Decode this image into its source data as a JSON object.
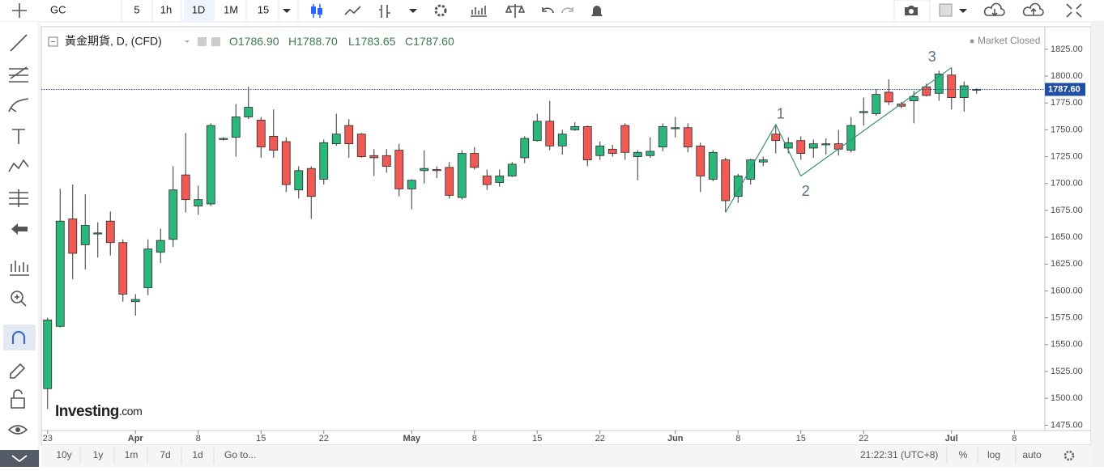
{
  "toolbar": {
    "symbol": "GC",
    "intervals": [
      "5",
      "1h",
      "1D",
      "1M",
      "15"
    ],
    "active": 2
  },
  "legend": {
    "name": "黃金期貨, D, (CFD)",
    "ohlc": [
      {
        "prefix": "O",
        "value": "1786.90"
      },
      {
        "prefix": "H",
        "value": "1788.70"
      },
      {
        "prefix": "L",
        "value": "1783.65"
      },
      {
        "prefix": "C",
        "value": "1787.60"
      }
    ],
    "status": "Market Closed"
  },
  "logo": {
    "brand": "Investing",
    "suffix": ".com"
  },
  "footer": {
    "ranges": [
      "10y",
      "1y",
      "1m",
      "7d",
      "1d"
    ],
    "goto": "Go to...",
    "time": "21:22:31 (UTC+8)",
    "options": [
      "%",
      "log",
      "auto"
    ]
  },
  "chart_data": {
    "type": "candlestick",
    "categories": [
      "23",
      null,
      null,
      null,
      null,
      null,
      null,
      "Apr",
      null,
      null,
      null,
      null,
      "8",
      null,
      null,
      null,
      null,
      "15",
      null,
      null,
      null,
      null,
      "22",
      null,
      null,
      null,
      null,
      null,
      null,
      "May",
      null,
      null,
      null,
      null,
      "8",
      null,
      null,
      null,
      null,
      "15",
      null,
      null,
      null,
      null,
      "22",
      null,
      null,
      null,
      null,
      null,
      "Jun",
      null,
      null,
      null,
      null,
      "8",
      null,
      null,
      null,
      null,
      "15",
      null,
      null,
      null,
      null,
      "22",
      null,
      null,
      null,
      null,
      null,
      null,
      "Jul",
      null,
      null,
      null,
      null,
      "8",
      null,
      null
    ],
    "open": [
      1509,
      1567,
      1667,
      1643,
      1653,
      1665,
      1645,
      1590,
      1603,
      1636,
      1648,
      1708,
      1679,
      1681,
      1741,
      1743,
      1762,
      1759,
      1744,
      1739,
      1694,
      1714,
      1704,
      1737,
      1754,
      1746,
      1726,
      1726,
      1731,
      1695,
      1712,
      1713,
      1715,
      1687,
      1728,
      1707,
      1701,
      1707,
      1724,
      1740,
      1758,
      1735,
      1750,
      1753,
      1726,
      1732,
      1754,
      1725,
      1726,
      1734,
      1751,
      1752,
      1735,
      1704,
      1722,
      1688,
      1704,
      1720,
      1746,
      1733,
      1740,
      1733,
      1736,
      1737,
      1731,
      1766,
      1765,
      1785,
      1774,
      1777,
      1790,
      1784,
      1801,
      1780,
      1786.9,
      null,
      null,
      null,
      null,
      null
    ],
    "high": [
      1575,
      1695,
      1699,
      1690,
      1664,
      1674,
      1648,
      1597,
      1648,
      1658,
      1716,
      1747,
      1698,
      1756,
      1743,
      1774,
      1790,
      1762,
      1769,
      1743,
      1716,
      1716,
      1741,
      1765,
      1760,
      1747,
      1732,
      1732,
      1737,
      1704,
      1731,
      1716,
      1720,
      1731,
      1734,
      1713,
      1713,
      1720,
      1744,
      1765,
      1777,
      1750,
      1757,
      1754,
      1739,
      1736,
      1756,
      1731,
      1743,
      1756,
      1762,
      1756,
      1738,
      1731,
      1724,
      1709,
      1723,
      1725,
      1755,
      1743,
      1744,
      1741,
      1742,
      1750,
      1762,
      1780,
      1788,
      1797,
      1776,
      1786,
      1793,
      1805,
      1808,
      1795,
      1788.7,
      null,
      null,
      null,
      null,
      null
    ],
    "low": [
      1490,
      1566,
      1611,
      1620,
      1631,
      1633,
      1590,
      1577,
      1596,
      1626,
      1641,
      1673,
      1671,
      1679,
      1740,
      1725,
      1760,
      1724,
      1724,
      1692,
      1686,
      1667,
      1699,
      1735,
      1724,
      1724,
      1707,
      1710,
      1688,
      1676,
      1700,
      1705,
      1686,
      1685,
      1713,
      1694,
      1697,
      1706,
      1719,
      1739,
      1731,
      1727,
      1749,
      1716,
      1722,
      1725,
      1722,
      1703,
      1724,
      1730,
      1743,
      1729,
      1692,
      1702,
      1673,
      1682,
      1699,
      1716,
      1728,
      1728,
      1722,
      1724,
      1727,
      1726,
      1729,
      1754,
      1763,
      1773,
      1770,
      1756,
      1781,
      1777,
      1769,
      1767,
      1783.65,
      null,
      null,
      null,
      null,
      null
    ],
    "close": [
      1573,
      1665,
      1635,
      1661,
      1654,
      1645,
      1597,
      1592,
      1639,
      1647,
      1694,
      1685,
      1685,
      1754,
      1742,
      1762,
      1771,
      1734,
      1731,
      1699,
      1712,
      1688,
      1738,
      1746,
      1737,
      1725,
      1724,
      1716,
      1695,
      1703,
      1714,
      1712,
      1689,
      1728,
      1715,
      1699,
      1707,
      1718,
      1742,
      1758,
      1735,
      1746,
      1753,
      1722,
      1735,
      1728,
      1729,
      1729,
      1730,
      1753,
      1752,
      1734,
      1707,
      1729,
      1684,
      1707,
      1722,
      1722,
      1740,
      1738,
      1728,
      1737,
      1737,
      1732,
      1754,
      1767,
      1783,
      1776,
      1772,
      1781,
      1782,
      1802,
      1780,
      1791,
      1787.6,
      null,
      null,
      null,
      null,
      null
    ],
    "up_color": "#2bb67c",
    "down_color": "#ef5a55",
    "ylim": [
      1470,
      1846
    ],
    "yticks": [
      {
        "value": 1475,
        "label": "1475.00"
      },
      {
        "value": 1500,
        "label": "1500.00"
      },
      {
        "value": 1525,
        "label": "1525.00"
      },
      {
        "value": 1550,
        "label": "1550.00"
      },
      {
        "value": 1575,
        "label": "1575.00"
      },
      {
        "value": 1600,
        "label": "1600.00"
      },
      {
        "value": 1625,
        "label": "1625.00"
      },
      {
        "value": 1650,
        "label": "1650.00"
      },
      {
        "value": 1675,
        "label": "1675.00"
      },
      {
        "value": 1700,
        "label": "1700.00"
      },
      {
        "value": 1725,
        "label": "1725.00"
      },
      {
        "value": 1750,
        "label": "1750.00"
      },
      {
        "value": 1775,
        "label": "1775.00"
      },
      {
        "value": 1800,
        "label": "1800.00"
      },
      {
        "value": 1825,
        "label": "1825.00"
      }
    ],
    "last_price": {
      "value": 1787.6,
      "label": "1787.60"
    },
    "wave": {
      "x": [
        54,
        58,
        60,
        72
      ],
      "price": [
        1673,
        1755,
        1707,
        1808
      ],
      "labels": [
        "1",
        "2",
        "3"
      ],
      "color": "#3a8f7a"
    }
  }
}
